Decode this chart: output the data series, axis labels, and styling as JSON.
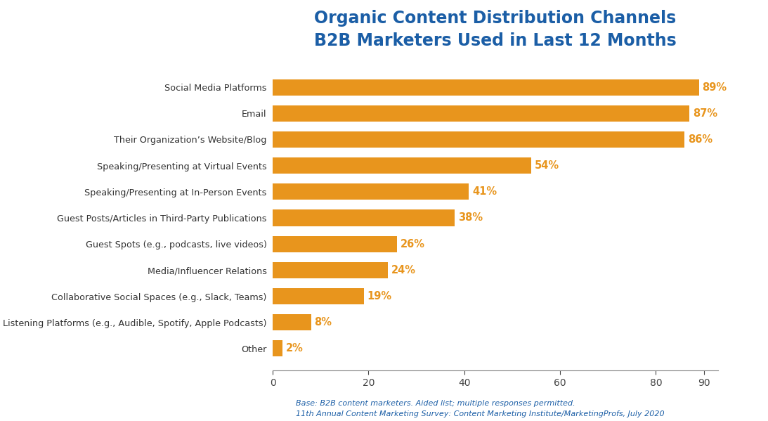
{
  "title_line1": "Organic Content Distribution Channels",
  "title_line2": "B2B Marketers Used in Last 12 Months",
  "title_color": "#1B5EA6",
  "bar_color": "#E8951D",
  "label_color": "#E8951D",
  "categories": [
    "Other",
    "Listening Platforms (e.g., Audible, Spotify, Apple Podcasts)",
    "Collaborative Social Spaces (e.g., Slack, Teams)",
    "Media/Influencer Relations",
    "Guest Spots (e.g., podcasts, live videos)",
    "Guest Posts/Articles in Third-Party Publications",
    "Speaking/Presenting at In-Person Events",
    "Speaking/Presenting at Virtual Events",
    "Their Organization’s Website/Blog",
    "Email",
    "Social Media Platforms"
  ],
  "values": [
    2,
    8,
    19,
    24,
    26,
    38,
    41,
    54,
    86,
    87,
    89
  ],
  "xlim": [
    0,
    93
  ],
  "xticks": [
    0,
    20,
    40,
    60,
    80,
    90
  ],
  "footnote_line1": "Base: B2B content marketers. Aided list; multiple responses permitted.",
  "footnote_line2": "11th Annual Content Marketing Survey: Content Marketing Institute/MarketingProfs, July 2020",
  "footnote_color": "#1B5EA6",
  "background_color": "#FFFFFF",
  "bar_height": 0.62,
  "ylabel_fontsize": 9.5,
  "value_fontsize": 10.5,
  "title_fontsize": 17
}
